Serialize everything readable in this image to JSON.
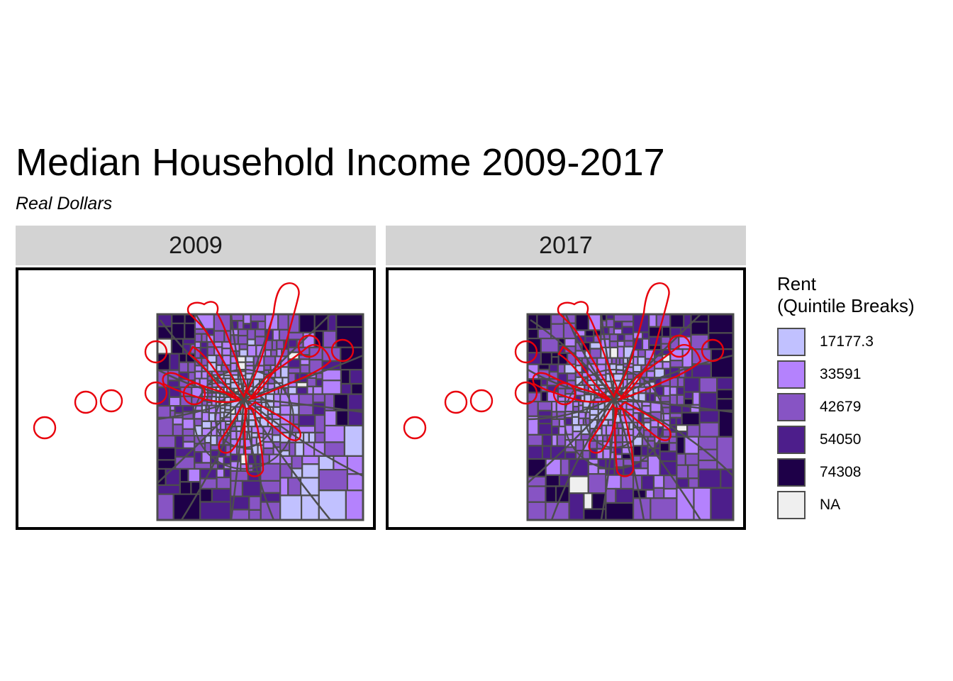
{
  "title": "Median Household Income 2009-2017",
  "subtitle": "Real Dollars",
  "panels": [
    {
      "label": "2009",
      "scheme": "a"
    },
    {
      "label": "2017",
      "scheme": "b"
    }
  ],
  "legend": {
    "title_line1": "Rent",
    "title_line2": "(Quintile Breaks)",
    "items": [
      {
        "label": "17177.3",
        "color": "#c1c1ff"
      },
      {
        "label": "33591",
        "color": "#b482fd"
      },
      {
        "label": "42679",
        "color": "#8754c4"
      },
      {
        "label": "54050",
        "color": "#4d1e8b"
      },
      {
        "label": "74308",
        "color": "#1e0048"
      },
      {
        "label": "NA",
        "color": "#efefef"
      }
    ]
  },
  "colors": {
    "tract_border": "#4d4d4d",
    "buffer_outline": "#e8000b",
    "strip_background": "#d3d3d3"
  }
}
